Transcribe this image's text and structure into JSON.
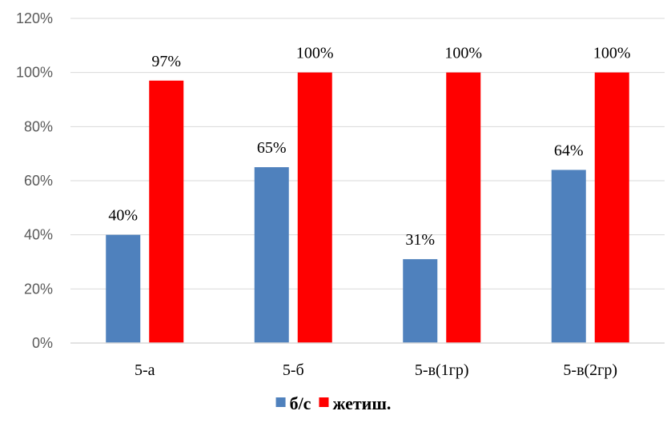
{
  "chart_data": {
    "type": "bar",
    "categories": [
      "5-а",
      "5-б",
      "5-в(1гр)",
      "5-в(2гр)"
    ],
    "series": [
      {
        "name": "б/с",
        "values": [
          40,
          65,
          31,
          64
        ],
        "labels": [
          "40%",
          "65%",
          "31%",
          "64%"
        ],
        "color": "#4F81BD"
      },
      {
        "name": "жетиш.",
        "values": [
          97,
          100,
          100,
          100
        ],
        "labels": [
          "97%",
          "100%",
          "100%",
          "100%"
        ],
        "color": "#FF0000"
      }
    ],
    "ylim": [
      0,
      120
    ],
    "yticks": [
      0,
      20,
      40,
      60,
      80,
      100,
      120
    ],
    "ytick_labels": [
      "0%",
      "20%",
      "40%",
      "60%",
      "80%",
      "100%",
      "120%"
    ],
    "title": "",
    "xlabel": "",
    "ylabel": "",
    "grid": true,
    "gridline_color": "#D9D9D9",
    "legend_position": "bottom"
  }
}
